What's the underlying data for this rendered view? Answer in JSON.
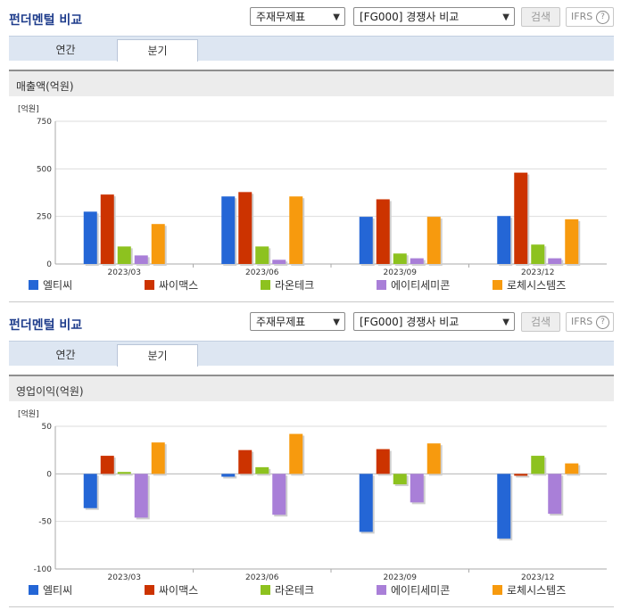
{
  "sections": [
    {
      "title": "펀더멘털 비교",
      "select1": "주재무제표",
      "select2": "[FG000] 경쟁사 비교",
      "search_label": "검색",
      "ifrs_label": "IFRS",
      "help_glyph": "?",
      "tabs": [
        "연간",
        "분기"
      ],
      "active_tab": "분기",
      "panel_title": "매출액(억원)"
    },
    {
      "title": "펀더멘털 비교",
      "select1": "주재무제표",
      "select2": "[FG000] 경쟁사 비교",
      "search_label": "검색",
      "ifrs_label": "IFRS",
      "help_glyph": "?",
      "tabs": [
        "연간",
        "분기"
      ],
      "active_tab": "분기",
      "panel_title": "영업이익(억원)"
    }
  ],
  "chart_data": [
    {
      "type": "bar",
      "title": "매출액(억원)",
      "unit_label": "[억원]",
      "categories": [
        "2023/03",
        "2023/06",
        "2023/09",
        "2023/12"
      ],
      "ylim": [
        0,
        750
      ],
      "yticks": [
        0,
        250,
        500,
        750
      ],
      "grid": true,
      "legend_position": "bottom",
      "series": [
        {
          "name": "엘티씨",
          "color": "#2466d6",
          "values": [
            275,
            355,
            248,
            252
          ]
        },
        {
          "name": "싸이맥스",
          "color": "#cc3300",
          "values": [
            365,
            378,
            340,
            480
          ]
        },
        {
          "name": "라온테크",
          "color": "#8dc21f",
          "values": [
            92,
            92,
            55,
            102
          ]
        },
        {
          "name": "에이티세미콘",
          "color": "#a97fd8",
          "values": [
            45,
            22,
            30,
            30
          ]
        },
        {
          "name": "로체시스템즈",
          "color": "#f79a0e",
          "values": [
            210,
            355,
            248,
            235
          ]
        }
      ]
    },
    {
      "type": "bar",
      "title": "영업이익(억원)",
      "unit_label": "[억원]",
      "categories": [
        "2023/03",
        "2023/06",
        "2023/09",
        "2023/12"
      ],
      "ylim": [
        -100,
        50
      ],
      "yticks": [
        -100,
        -50,
        0,
        50
      ],
      "grid": true,
      "legend_position": "bottom",
      "series": [
        {
          "name": "엘티씨",
          "color": "#2466d6",
          "values": [
            -36,
            -3,
            -61,
            -68
          ]
        },
        {
          "name": "싸이맥스",
          "color": "#cc3300",
          "values": [
            19,
            25,
            26,
            -2
          ]
        },
        {
          "name": "라온테크",
          "color": "#8dc21f",
          "values": [
            2,
            7,
            -11,
            19
          ]
        },
        {
          "name": "에이티세미콘",
          "color": "#a97fd8",
          "values": [
            -46,
            -43,
            -30,
            -42
          ]
        },
        {
          "name": "로체시스템즈",
          "color": "#f79a0e",
          "values": [
            33,
            42,
            32,
            11
          ]
        }
      ]
    }
  ]
}
